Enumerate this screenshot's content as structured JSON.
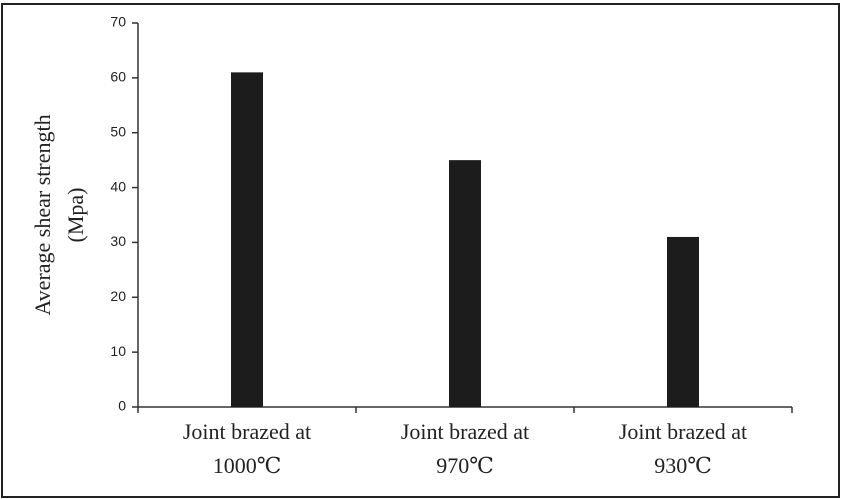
{
  "chart_data": {
    "type": "bar",
    "y_label": [
      "Average shear strength",
      "(Mpa)"
    ],
    "categories": [
      [
        "Joint brazed at",
        "1000℃"
      ],
      [
        "Joint brazed at",
        "970℃"
      ],
      [
        "Joint brazed at",
        "930℃"
      ]
    ],
    "values": [
      61,
      45,
      31
    ],
    "color": "#1c1c1c",
    "ylim": [
      0,
      70
    ],
    "yticks": [
      0,
      10,
      20,
      30,
      40,
      50,
      60,
      70
    ]
  }
}
